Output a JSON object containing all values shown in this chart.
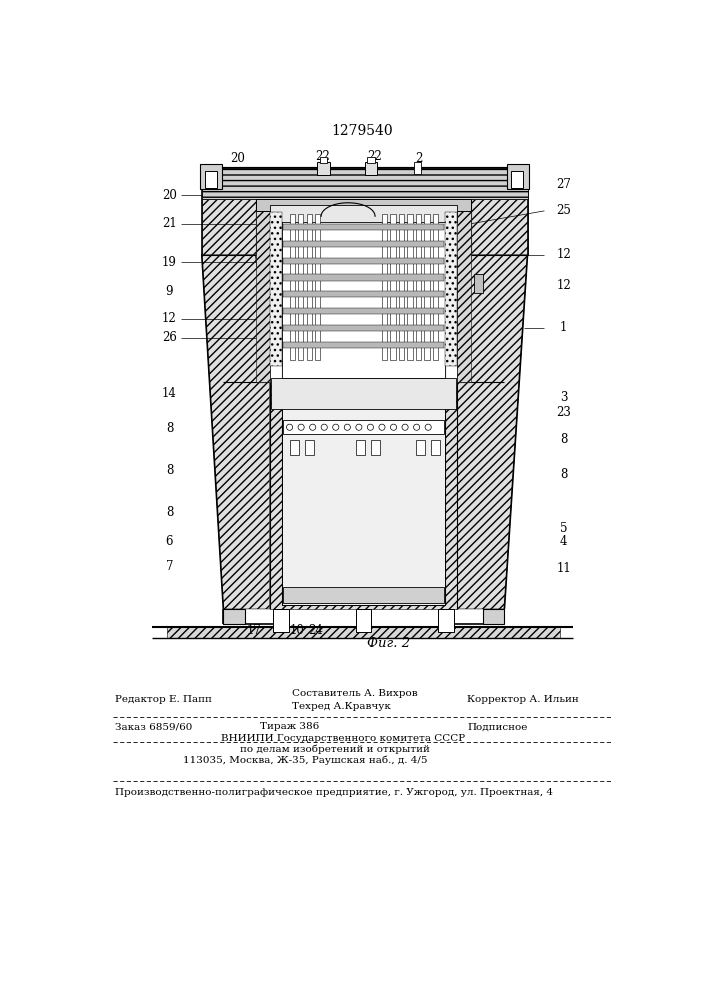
{
  "title": "1279540",
  "fig_label": "Фиг. 2",
  "bg_color": "#ffffff",
  "footer": {
    "line1_left": "Редактор Е. Папп",
    "line1_center_top": "Составитель А. Вихров",
    "line1_center_bot": "Техред А.Кравчук",
    "line1_right": "Корректор А. Ильин",
    "line2_left": "Заказ 6859/60",
    "line2_center": "Тираж 386",
    "line2_right": "Подписное",
    "line3": "ВНИИПИ Государственного комитета СССР",
    "line4": "по делам изобретений и открытий",
    "line5": "113035, Москва, Ж-35, Раушская наб., д. 4/5",
    "line6": "Производственно-полиграфическое предприятие, г. Ужгород, ул. Проектная, 4"
  }
}
